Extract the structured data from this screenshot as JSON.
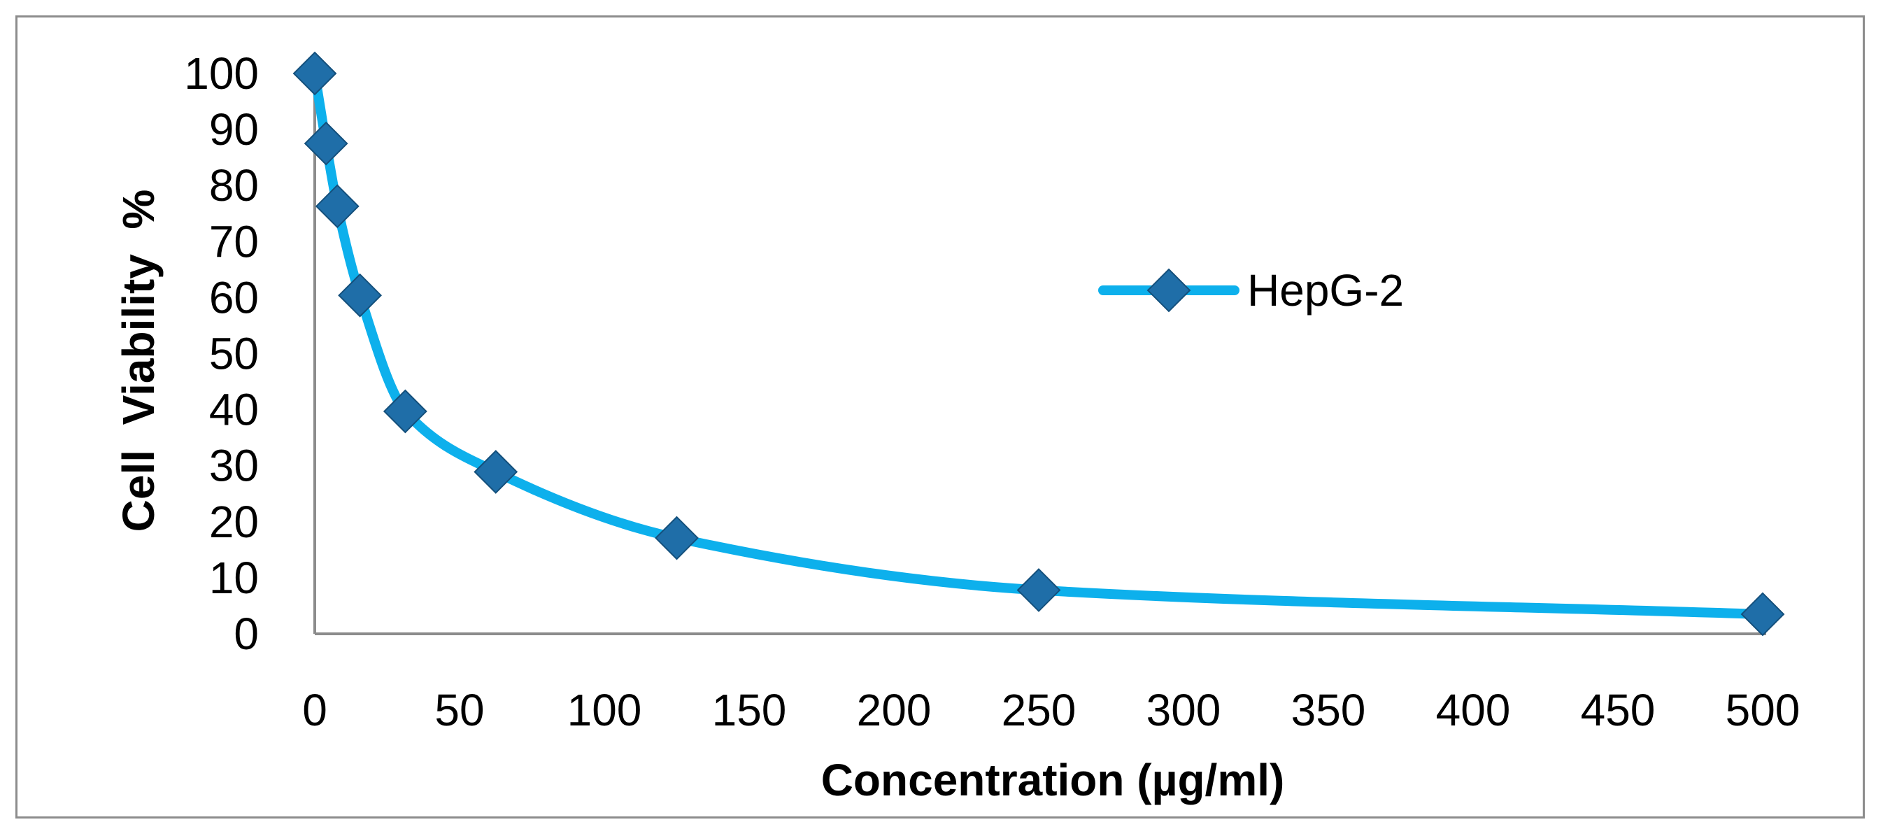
{
  "chart_data": {
    "type": "line",
    "title": "",
    "xlabel": "Concentration (µg/ml)",
    "ylabel": "Cell  Viability  %",
    "xlim": [
      0,
      500
    ],
    "ylim": [
      0,
      100
    ],
    "xticks": [
      0,
      50,
      100,
      150,
      200,
      250,
      300,
      350,
      400,
      450,
      500
    ],
    "yticks": [
      0,
      10,
      20,
      30,
      40,
      50,
      60,
      70,
      80,
      90,
      100
    ],
    "grid": false,
    "smooth": true,
    "legend_position": "right-middle",
    "series": [
      {
        "name": "HepG-2",
        "line_color": "#0db0ec",
        "marker_color": "#1f6ea8",
        "marker": "diamond",
        "x": [
          0,
          3.9,
          7.8,
          15.6,
          31.25,
          62.5,
          125,
          250,
          500
        ],
        "y": [
          100,
          87.5,
          76.3,
          60.4,
          39.7,
          28.9,
          17.1,
          7.8,
          3.5
        ]
      }
    ]
  }
}
